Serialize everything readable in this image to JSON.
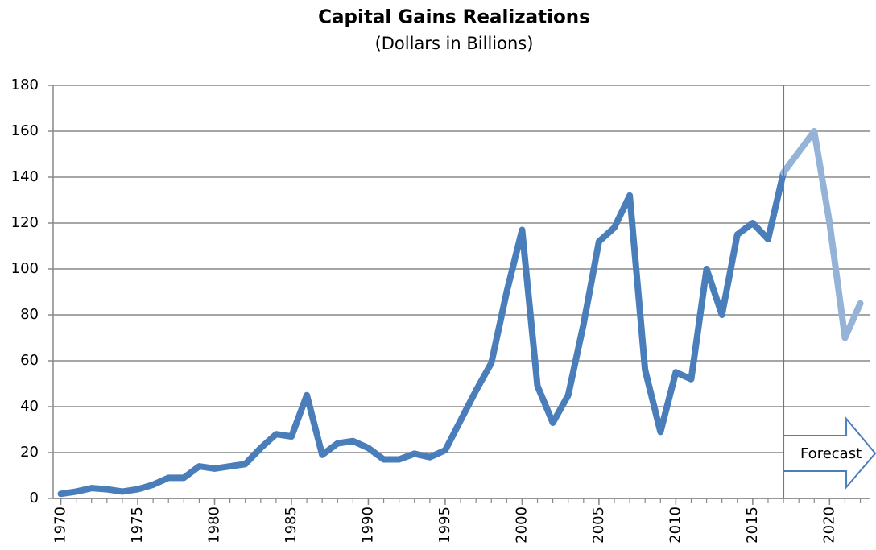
{
  "chart_data": {
    "type": "line",
    "title": "Capital Gains Realizations",
    "subtitle": "(Dollars in Billions)",
    "x": [
      1970,
      1971,
      1972,
      1973,
      1974,
      1975,
      1976,
      1977,
      1978,
      1979,
      1980,
      1981,
      1982,
      1983,
      1984,
      1985,
      1986,
      1987,
      1988,
      1989,
      1990,
      1991,
      1992,
      1993,
      1994,
      1995,
      1996,
      1997,
      1998,
      1999,
      2000,
      2001,
      2002,
      2003,
      2004,
      2005,
      2006,
      2007,
      2008,
      2009,
      2010,
      2011,
      2012,
      2013,
      2014,
      2015,
      2016,
      2017,
      2018,
      2019,
      2020,
      2021,
      2022
    ],
    "series": [
      {
        "color": "#4a7ebb",
        "values": [
          2,
          3,
          4.5,
          4,
          3,
          4,
          6,
          9,
          9,
          14,
          13,
          14,
          15,
          22,
          28,
          27,
          45,
          19,
          24,
          25,
          22,
          17,
          17,
          19.5,
          18,
          21,
          34,
          47,
          59,
          90,
          117,
          49,
          33,
          45,
          76,
          112,
          118,
          132,
          56,
          29,
          55,
          52,
          100,
          80,
          115,
          120,
          113,
          142,
          null,
          null,
          null,
          null,
          null
        ]
      },
      {
        "color": "#95b3d7",
        "values": [
          null,
          null,
          null,
          null,
          null,
          null,
          null,
          null,
          null,
          null,
          null,
          null,
          null,
          null,
          null,
          null,
          null,
          null,
          null,
          null,
          null,
          null,
          null,
          null,
          null,
          null,
          null,
          null,
          null,
          null,
          null,
          null,
          null,
          null,
          null,
          null,
          null,
          null,
          null,
          null,
          null,
          null,
          null,
          null,
          null,
          null,
          null,
          142,
          151,
          160,
          120,
          70,
          85
        ]
      }
    ],
    "forecast_start": 2017,
    "annotation": "Forecast",
    "xlim": [
      1969.5,
      2022.6
    ],
    "xticks": [
      1970,
      1975,
      1980,
      1985,
      1990,
      1995,
      2000,
      2005,
      2010,
      2015,
      2020
    ],
    "ylim": [
      0,
      180
    ],
    "yticks": [
      0,
      20,
      40,
      60,
      80,
      100,
      120,
      140,
      160,
      180
    ],
    "grid": true
  }
}
